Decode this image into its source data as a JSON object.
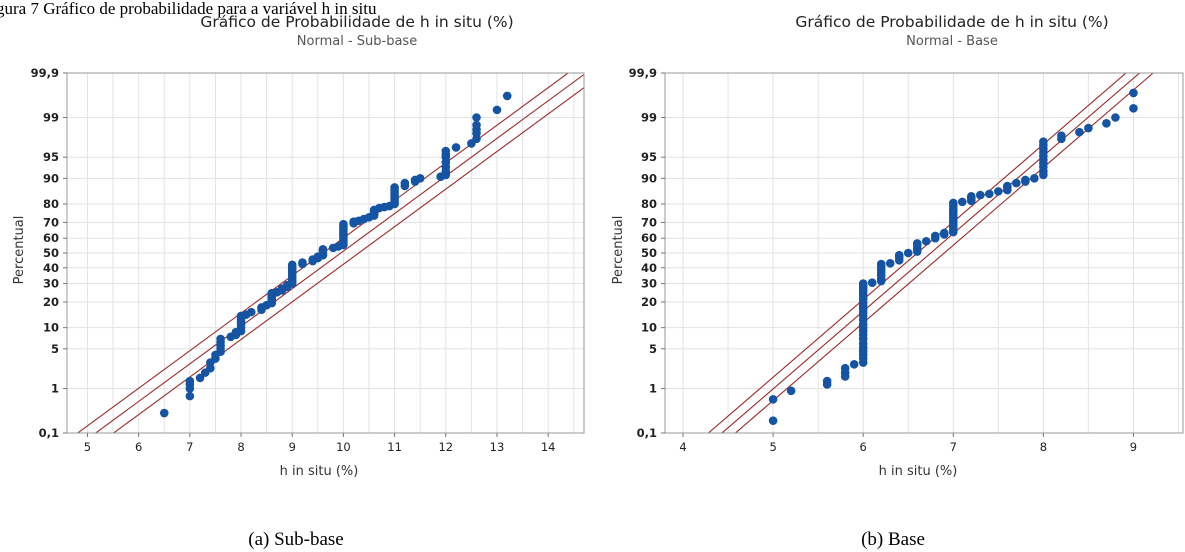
{
  "intro_text": "gura 7 Gráfico de probabilidade para a variável h in situ",
  "chart_data": [
    {
      "type": "scatter",
      "title": "Gráfico de Probabilidade de h in situ (%)",
      "subtitle": "Normal - Sub-base",
      "xlabel": "h in situ (%)",
      "ylabel": "Percentual",
      "caption": "(a) Sub-base",
      "xlim": [
        4.6,
        14.7
      ],
      "xticks": [
        5,
        6,
        7,
        8,
        9,
        10,
        11,
        12,
        13,
        14
      ],
      "yticks": [
        "0,1",
        "1",
        "5",
        "10",
        "20",
        "30",
        "40",
        "50",
        "60",
        "70",
        "80",
        "90",
        "95",
        "99",
        "99,9"
      ],
      "ylim_percent": [
        0.1,
        99.9
      ],
      "y_scale": "normal-probability",
      "grid": true,
      "fit_line": {
        "mean": 9.95,
        "sd": 1.55
      },
      "ci_offset": 0.35,
      "points": [
        [
          6.5,
          0.3
        ],
        [
          7.0,
          0.7
        ],
        [
          7.0,
          1.0
        ],
        [
          7.0,
          1.2
        ],
        [
          7.0,
          1.4
        ],
        [
          7.2,
          1.6
        ],
        [
          7.3,
          2.0
        ],
        [
          7.4,
          2.4
        ],
        [
          7.4,
          3.0
        ],
        [
          7.5,
          3.5
        ],
        [
          7.5,
          4.0
        ],
        [
          7.6,
          4.5
        ],
        [
          7.6,
          5.0
        ],
        [
          7.6,
          5.6
        ],
        [
          7.6,
          6.3
        ],
        [
          7.6,
          7.0
        ],
        [
          7.8,
          7.5
        ],
        [
          7.9,
          8.0
        ],
        [
          7.9,
          8.7
        ],
        [
          8.0,
          9.0
        ],
        [
          8.0,
          10.0
        ],
        [
          8.0,
          11.0
        ],
        [
          8.0,
          12.0
        ],
        [
          8.0,
          13.0
        ],
        [
          8.0,
          14.0
        ],
        [
          8.1,
          14.5
        ],
        [
          8.2,
          15.5
        ],
        [
          8.4,
          16.5
        ],
        [
          8.4,
          17.5
        ],
        [
          8.5,
          18.5
        ],
        [
          8.6,
          19.5
        ],
        [
          8.6,
          20.5
        ],
        [
          8.6,
          21.5
        ],
        [
          8.6,
          22.5
        ],
        [
          8.6,
          23.5
        ],
        [
          8.6,
          24.5
        ],
        [
          8.7,
          25.0
        ],
        [
          8.8,
          26.0
        ],
        [
          8.8,
          27.0
        ],
        [
          8.9,
          28.0
        ],
        [
          8.9,
          29.0
        ],
        [
          9.0,
          30.0
        ],
        [
          9.0,
          31.5
        ],
        [
          9.0,
          33.0
        ],
        [
          9.0,
          34.5
        ],
        [
          9.0,
          36.0
        ],
        [
          9.0,
          37.5
        ],
        [
          9.0,
          39.0
        ],
        [
          9.0,
          40.5
        ],
        [
          9.0,
          42.0
        ],
        [
          9.2,
          42.5
        ],
        [
          9.2,
          43.5
        ],
        [
          9.4,
          44.5
        ],
        [
          9.4,
          45.5
        ],
        [
          9.5,
          46.5
        ],
        [
          9.5,
          47.5
        ],
        [
          9.6,
          48.5
        ],
        [
          9.6,
          50.0
        ],
        [
          9.6,
          51.5
        ],
        [
          9.6,
          52.5
        ],
        [
          9.8,
          53.5
        ],
        [
          9.9,
          54.5
        ],
        [
          10.0,
          55.5
        ],
        [
          10.0,
          57.0
        ],
        [
          10.0,
          58.5
        ],
        [
          10.0,
          60.0
        ],
        [
          10.0,
          61.5
        ],
        [
          10.0,
          63.0
        ],
        [
          10.0,
          64.5
        ],
        [
          10.0,
          66.0
        ],
        [
          10.0,
          67.5
        ],
        [
          10.0,
          69.0
        ],
        [
          10.2,
          69.5
        ],
        [
          10.2,
          70.5
        ],
        [
          10.3,
          71.0
        ],
        [
          10.4,
          72.0
        ],
        [
          10.5,
          73.0
        ],
        [
          10.6,
          74.0
        ],
        [
          10.6,
          75.0
        ],
        [
          10.6,
          76.0
        ],
        [
          10.6,
          77.0
        ],
        [
          10.7,
          78.0
        ],
        [
          10.8,
          78.5
        ],
        [
          10.9,
          79.0
        ],
        [
          11.0,
          80.0
        ],
        [
          11.0,
          81.0
        ],
        [
          11.0,
          82.0
        ],
        [
          11.0,
          83.0
        ],
        [
          11.0,
          84.0
        ],
        [
          11.0,
          85.0
        ],
        [
          11.0,
          86.0
        ],
        [
          11.0,
          87.0
        ],
        [
          11.2,
          87.5
        ],
        [
          11.2,
          88.5
        ],
        [
          11.4,
          89.0
        ],
        [
          11.4,
          89.5
        ],
        [
          11.5,
          90.0
        ],
        [
          11.9,
          90.5
        ],
        [
          12.0,
          91.0
        ],
        [
          12.0,
          92.0
        ],
        [
          12.0,
          93.0
        ],
        [
          12.0,
          94.0
        ],
        [
          12.0,
          95.0
        ],
        [
          12.0,
          95.5
        ],
        [
          12.0,
          96.0
        ],
        [
          12.2,
          96.5
        ],
        [
          12.5,
          97.0
        ],
        [
          12.6,
          97.5
        ],
        [
          12.6,
          98.0
        ],
        [
          12.6,
          98.3
        ],
        [
          12.6,
          98.6
        ],
        [
          12.6,
          99.0
        ],
        [
          13.0,
          99.3
        ],
        [
          13.2,
          99.65
        ]
      ]
    },
    {
      "type": "scatter",
      "title": "Gráfico de Probabilidade de h in situ (%)",
      "subtitle": "Normal - Base",
      "xlabel": "h in situ (%)",
      "ylabel": "Percentual",
      "caption": "(b) Base",
      "xlim": [
        3.8,
        9.55
      ],
      "xticks": [
        4,
        5,
        6,
        7,
        8,
        9
      ],
      "yticks": [
        "0,1",
        "1",
        "5",
        "10",
        "20",
        "30",
        "40",
        "50",
        "60",
        "70",
        "80",
        "90",
        "95",
        "99",
        "99,9"
      ],
      "ylim_percent": [
        0.1,
        99.9
      ],
      "y_scale": "normal-probability",
      "grid": true,
      "fit_line": {
        "mean": 6.75,
        "sd": 0.75
      },
      "ci_offset": 0.15,
      "points": [
        [
          5.0,
          0.2
        ],
        [
          5.0,
          0.6
        ],
        [
          5.2,
          0.9
        ],
        [
          5.6,
          1.2
        ],
        [
          5.6,
          1.4
        ],
        [
          5.8,
          1.7
        ],
        [
          5.8,
          2.0
        ],
        [
          5.8,
          2.4
        ],
        [
          5.9,
          2.8
        ],
        [
          6.0,
          3.0
        ],
        [
          6.0,
          3.5
        ],
        [
          6.0,
          4.0
        ],
        [
          6.0,
          4.6
        ],
        [
          6.0,
          5.2
        ],
        [
          6.0,
          6.0
        ],
        [
          6.0,
          7.0
        ],
        [
          6.0,
          8.0
        ],
        [
          6.0,
          9.0
        ],
        [
          6.0,
          10.0
        ],
        [
          6.0,
          11.0
        ],
        [
          6.0,
          12.5
        ],
        [
          6.0,
          14.0
        ],
        [
          6.0,
          15.5
        ],
        [
          6.0,
          17.0
        ],
        [
          6.0,
          18.5
        ],
        [
          6.0,
          20.0
        ],
        [
          6.0,
          21.5
        ],
        [
          6.0,
          23.0
        ],
        [
          6.0,
          24.5
        ],
        [
          6.0,
          26.0
        ],
        [
          6.0,
          27.5
        ],
        [
          6.0,
          29.0
        ],
        [
          6.0,
          30.0
        ],
        [
          6.1,
          30.5
        ],
        [
          6.2,
          31.5
        ],
        [
          6.2,
          33.0
        ],
        [
          6.2,
          35.0
        ],
        [
          6.2,
          37.0
        ],
        [
          6.2,
          39.0
        ],
        [
          6.2,
          41.0
        ],
        [
          6.2,
          42.5
        ],
        [
          6.3,
          43.0
        ],
        [
          6.4,
          45.0
        ],
        [
          6.4,
          47.0
        ],
        [
          6.4,
          48.5
        ],
        [
          6.5,
          50.0
        ],
        [
          6.6,
          51.0
        ],
        [
          6.6,
          53.0
        ],
        [
          6.6,
          55.0
        ],
        [
          6.6,
          56.5
        ],
        [
          6.7,
          58.0
        ],
        [
          6.8,
          60.0
        ],
        [
          6.8,
          61.5
        ],
        [
          6.9,
          62.5
        ],
        [
          6.9,
          63.5
        ],
        [
          7.0,
          64.0
        ],
        [
          7.0,
          65.5
        ],
        [
          7.0,
          67.0
        ],
        [
          7.0,
          68.5
        ],
        [
          7.0,
          70.0
        ],
        [
          7.0,
          71.5
        ],
        [
          7.0,
          73.0
        ],
        [
          7.0,
          74.5
        ],
        [
          7.0,
          76.0
        ],
        [
          7.0,
          77.5
        ],
        [
          7.0,
          79.0
        ],
        [
          7.0,
          80.5
        ],
        [
          7.1,
          81.0
        ],
        [
          7.2,
          81.5
        ],
        [
          7.2,
          82.5
        ],
        [
          7.2,
          83.5
        ],
        [
          7.3,
          84.0
        ],
        [
          7.4,
          84.5
        ],
        [
          7.5,
          85.5
        ],
        [
          7.6,
          86.0
        ],
        [
          7.6,
          87.0
        ],
        [
          7.6,
          87.5
        ],
        [
          7.7,
          88.5
        ],
        [
          7.8,
          89.0
        ],
        [
          7.8,
          89.5
        ],
        [
          7.9,
          90.0
        ],
        [
          8.0,
          91.0
        ],
        [
          8.0,
          92.0
        ],
        [
          8.0,
          93.0
        ],
        [
          8.0,
          93.8
        ],
        [
          8.0,
          94.5
        ],
        [
          8.0,
          95.2
        ],
        [
          8.0,
          95.8
        ],
        [
          8.0,
          96.3
        ],
        [
          8.0,
          96.8
        ],
        [
          8.0,
          97.2
        ],
        [
          8.2,
          97.5
        ],
        [
          8.2,
          97.8
        ],
        [
          8.4,
          98.1
        ],
        [
          8.5,
          98.4
        ],
        [
          8.7,
          98.7
        ],
        [
          8.8,
          99.0
        ],
        [
          9.0,
          99.35
        ],
        [
          9.0,
          99.7
        ]
      ]
    }
  ]
}
